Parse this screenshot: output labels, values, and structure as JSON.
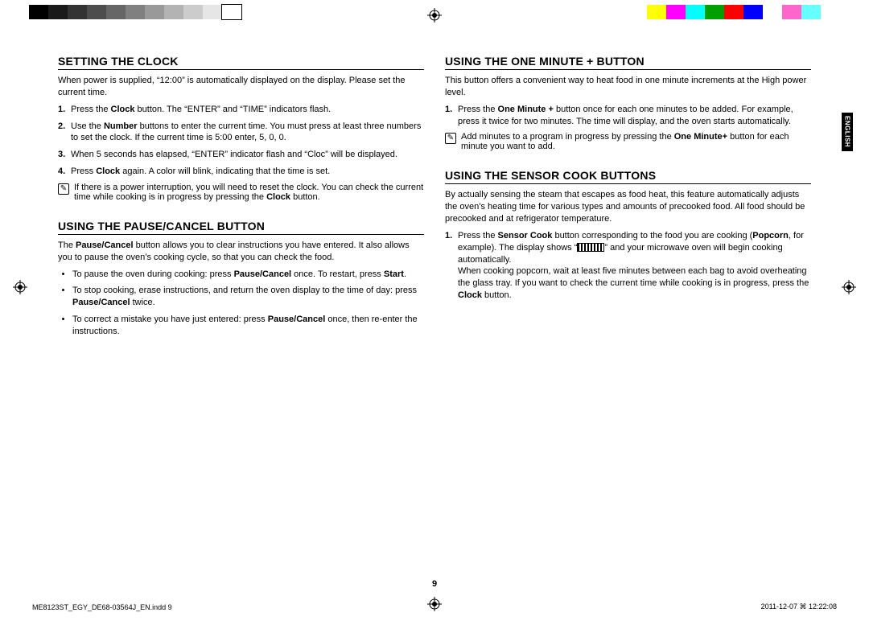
{
  "colorbar_left": [
    "#000000",
    "#1a1a1a",
    "#333333",
    "#4d4d4d",
    "#666666",
    "#808080",
    "#999999",
    "#b3b3b3",
    "#cccccc",
    "#e6e6e6",
    "#ffffff"
  ],
  "colorbar_right": [
    "#ffff00",
    "#ff00ff",
    "#00ffff",
    "#00a000",
    "#ff0000",
    "#0000ff",
    "#ffffff",
    "#ff66cc",
    "#66ffff",
    "#ffffff"
  ],
  "side_tab": "ENGLISH",
  "page_number": "9",
  "footer_left": "ME8123ST_EGY_DE68-03564J_EN.indd   9",
  "footer_right": "2011-12-07   ⌘ 12:22:08",
  "col1": {
    "s1": {
      "title": "SETTING THE CLOCK",
      "intro": "When power is supplied, “12:00” is automatically displayed on the display. Please set the current time.",
      "items": [
        "Press the <b>Clock</b> button. The “ENTER” and “TIME” indicators flash.",
        "Use the <b>Number</b> buttons to enter the current time. You must press at least three numbers to set the clock. If the current time is 5:00 enter, 5, 0, 0.",
        "When 5 seconds has elapsed, “ENTER” indicator flash and “Cloc” will be displayed.",
        "Press <b>Clock</b> again. A color will blink, indicating that the time is set."
      ],
      "note": "If there is a power interruption, you will need to reset the clock. You can check the current time while cooking is in progress by pressing the <b>Clock</b> button."
    },
    "s2": {
      "title": "USING THE PAUSE/CANCEL BUTTON",
      "intro": "The <b>Pause/Cancel</b> button allows you to clear instructions you have entered. It also allows you to pause the oven’s cooking cycle, so that you can check the food.",
      "bullets": [
        "To pause the oven during cooking: press <b>Pause/Cancel</b> once. To restart, press <b>Start</b>.",
        "To stop cooking, erase instructions, and return the oven display to the time of day: press <b>Pause/Cancel</b> twice.",
        "To correct a mistake you have just entered: press <b>Pause/Cancel</b> once, then re-enter the instructions."
      ]
    }
  },
  "col2": {
    "s1": {
      "title": "USING THE ONE MINUTE + BUTTON",
      "intro": "This button offers a convenient way to heat food in one minute increments at the High power level.",
      "items": [
        "Press the <b>One Minute +</b> button once for each one minutes to be added. For example, press it twice for two minutes. The time will display, and the oven starts automatically."
      ],
      "note": "Add minutes to a program in progress by pressing the <b>One Minute+</b> button for each minute you want to add."
    },
    "s2": {
      "title": "USING THE SENSOR COOK BUTTONS",
      "intro": "By actually sensing the steam that escapes as food heat, this feature automatically adjusts the oven’s heating time for various types and amounts of precooked food. All food should be precooked and at refrigerator temperature.",
      "item": "Press the <b>Sensor Cook</b> button corresponding to the food you are cooking (<b>Popcorn</b>, for example). The display shows “<span class='displaybox'></span>” and your microwave oven will begin cooking automatically.<br>When cooking popcorn, wait at least five minutes between each bag to avoid overheating the glass tray. If you want to check the current time while cooking is in progress, press the <b>Clock</b> button."
    }
  }
}
